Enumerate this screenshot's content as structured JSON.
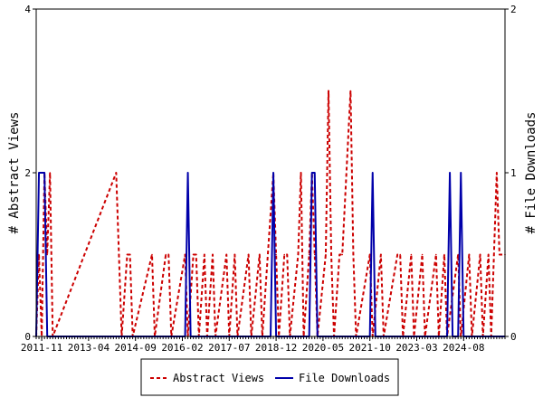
{
  "chart_data": {
    "type": "line",
    "ylabel_left": "# Abstract Views",
    "ylabel_right": "# File Downloads",
    "y_left_ticks": [
      "0",
      "2",
      "4"
    ],
    "y_left_range": [
      0,
      4
    ],
    "y_right_ticks": [
      "0",
      "1",
      "2"
    ],
    "y_right_range": [
      0,
      2
    ],
    "x_range": [
      "2011-09",
      "2025-11"
    ],
    "x_tick_labels": [
      "2011-11",
      "2013-04",
      "2014-09",
      "2016-02",
      "2017-07",
      "2018-12",
      "2020-05",
      "2021-10",
      "2023-03",
      "2024-08"
    ],
    "grid": false,
    "legend_position": "bottom",
    "series": [
      {
        "name": "Abstract Views",
        "axis": "left",
        "color": "#cc0000",
        "style": "dashed",
        "points": [
          [
            "2011-09",
            0
          ],
          [
            "2011-10",
            1
          ],
          [
            "2011-11",
            0
          ],
          [
            "2011-12",
            2
          ],
          [
            "2012-01",
            1
          ],
          [
            "2012-02",
            2
          ],
          [
            "2012-03",
            0
          ],
          [
            "2014-02",
            2
          ],
          [
            "2014-03",
            1
          ],
          [
            "2014-04",
            0
          ],
          [
            "2014-06",
            1
          ],
          [
            "2014-07",
            1
          ],
          [
            "2014-08",
            0
          ],
          [
            "2015-03",
            1
          ],
          [
            "2015-04",
            0
          ],
          [
            "2015-08",
            1
          ],
          [
            "2015-09",
            1
          ],
          [
            "2015-10",
            0
          ],
          [
            "2016-03",
            1
          ],
          [
            "2016-04",
            0
          ],
          [
            "2016-06",
            1
          ],
          [
            "2016-07",
            1
          ],
          [
            "2016-08",
            0
          ],
          [
            "2016-10",
            1
          ],
          [
            "2016-11",
            0
          ],
          [
            "2017-01",
            1
          ],
          [
            "2017-02",
            0
          ],
          [
            "2017-06",
            1
          ],
          [
            "2017-07",
            0
          ],
          [
            "2017-09",
            1
          ],
          [
            "2017-10",
            0
          ],
          [
            "2018-02",
            1
          ],
          [
            "2018-03",
            0
          ],
          [
            "2018-06",
            1
          ],
          [
            "2018-07",
            0
          ],
          [
            "2018-11",
            2
          ],
          [
            "2018-12",
            1
          ],
          [
            "2019-01",
            0
          ],
          [
            "2019-03",
            1
          ],
          [
            "2019-04",
            1
          ],
          [
            "2019-05",
            0
          ],
          [
            "2019-08",
            1
          ],
          [
            "2019-09",
            2
          ],
          [
            "2019-10",
            0
          ],
          [
            "2019-12",
            1
          ],
          [
            "2020-01",
            2
          ],
          [
            "2020-02",
            1
          ],
          [
            "2020-03",
            0
          ],
          [
            "2020-06",
            1
          ],
          [
            "2020-07",
            3
          ],
          [
            "2020-08",
            1
          ],
          [
            "2020-09",
            0
          ],
          [
            "2020-11",
            1
          ],
          [
            "2020-12",
            1
          ],
          [
            "2021-03",
            3
          ],
          [
            "2021-04",
            1
          ],
          [
            "2021-05",
            0
          ],
          [
            "2021-10",
            1
          ],
          [
            "2021-11",
            0
          ],
          [
            "2022-02",
            1
          ],
          [
            "2022-03",
            0
          ],
          [
            "2022-08",
            1
          ],
          [
            "2022-09",
            1
          ],
          [
            "2022-10",
            0
          ],
          [
            "2023-01",
            1
          ],
          [
            "2023-02",
            0
          ],
          [
            "2023-05",
            1
          ],
          [
            "2023-06",
            0
          ],
          [
            "2023-10",
            1
          ],
          [
            "2023-11",
            0
          ],
          [
            "2024-01",
            1
          ],
          [
            "2024-02",
            0
          ],
          [
            "2024-06",
            1
          ],
          [
            "2024-07",
            0
          ],
          [
            "2024-10",
            1
          ],
          [
            "2024-11",
            0
          ],
          [
            "2025-02",
            1
          ],
          [
            "2025-03",
            0
          ],
          [
            "2025-05",
            1
          ],
          [
            "2025-06",
            0
          ],
          [
            "2025-08",
            2
          ],
          [
            "2025-09",
            1
          ],
          [
            "2025-11",
            1
          ]
        ]
      },
      {
        "name": "File Downloads",
        "axis": "right",
        "color": "#0000aa",
        "style": "solid",
        "points": [
          [
            "2011-09",
            0
          ],
          [
            "2011-10",
            1
          ],
          [
            "2011-11",
            1
          ],
          [
            "2011-12",
            1
          ],
          [
            "2012-01",
            0
          ],
          [
            "2016-03",
            0
          ],
          [
            "2016-04",
            1
          ],
          [
            "2016-05",
            0
          ],
          [
            "2018-10",
            0
          ],
          [
            "2018-11",
            1
          ],
          [
            "2018-12",
            0
          ],
          [
            "2019-12",
            0
          ],
          [
            "2020-01",
            1
          ],
          [
            "2020-02",
            1
          ],
          [
            "2020-03",
            0
          ],
          [
            "2021-10",
            0
          ],
          [
            "2021-11",
            1
          ],
          [
            "2021-12",
            0
          ],
          [
            "2024-02",
            0
          ],
          [
            "2024-03",
            1
          ],
          [
            "2024-04",
            0
          ],
          [
            "2024-06",
            0
          ],
          [
            "2024-07",
            1
          ],
          [
            "2024-08",
            0
          ],
          [
            "2025-11",
            0
          ]
        ]
      }
    ]
  }
}
